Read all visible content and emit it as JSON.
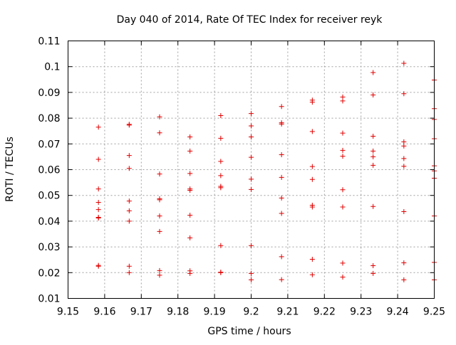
{
  "chart_data": {
    "type": "scatter",
    "title": "Day 040 of 2014, Rate Of TEC Index for receiver reyk",
    "xlabel": "GPS time / hours",
    "ylabel": "ROTI / TECUs",
    "xlim": [
      9.15,
      9.25
    ],
    "ylim": [
      0.01,
      0.11
    ],
    "grid": true,
    "marker": "plus",
    "marker_color": "#e00000",
    "x_ticks": [
      9.15,
      9.16,
      9.17,
      9.18,
      9.19,
      9.2,
      9.21,
      9.22,
      9.23,
      9.24,
      9.25
    ],
    "x_tick_labels": [
      "9.15",
      "9.16",
      "9.17",
      "9.18",
      "9.19",
      "9.2",
      "9.21",
      "9.22",
      "9.23",
      "9.24",
      "9.25"
    ],
    "y_ticks": [
      0.01,
      0.02,
      0.03,
      0.04,
      0.05,
      0.06,
      0.07,
      0.08,
      0.09,
      0.1,
      0.11
    ],
    "y_tick_labels": [
      "0.01",
      "0.02",
      "0.03",
      "0.04",
      "0.05",
      "0.06",
      "0.07",
      "0.08",
      "0.09",
      "0.1",
      "0.11"
    ],
    "series": [
      {
        "name": "ROTI",
        "points": [
          [
            9.1583,
            0.0765
          ],
          [
            9.1583,
            0.064
          ],
          [
            9.1583,
            0.0525
          ],
          [
            9.1583,
            0.0473
          ],
          [
            9.1583,
            0.0445
          ],
          [
            9.1583,
            0.0415
          ],
          [
            9.1583,
            0.0412
          ],
          [
            9.1583,
            0.0228
          ],
          [
            9.1583,
            0.0225
          ],
          [
            9.1667,
            0.0776
          ],
          [
            9.1667,
            0.0773
          ],
          [
            9.1667,
            0.0655
          ],
          [
            9.1667,
            0.0605
          ],
          [
            9.1667,
            0.0478
          ],
          [
            9.1667,
            0.044
          ],
          [
            9.1667,
            0.04
          ],
          [
            9.1667,
            0.0225
          ],
          [
            9.1667,
            0.02
          ],
          [
            9.175,
            0.0805
          ],
          [
            9.175,
            0.0743
          ],
          [
            9.175,
            0.0583
          ],
          [
            9.175,
            0.0487
          ],
          [
            9.175,
            0.0483
          ],
          [
            9.175,
            0.042
          ],
          [
            9.175,
            0.036
          ],
          [
            9.175,
            0.0208
          ],
          [
            9.175,
            0.019
          ],
          [
            9.1833,
            0.0727
          ],
          [
            9.1833,
            0.0672
          ],
          [
            9.1833,
            0.0585
          ],
          [
            9.1833,
            0.0525
          ],
          [
            9.1833,
            0.052
          ],
          [
            9.1833,
            0.0423
          ],
          [
            9.1833,
            0.0335
          ],
          [
            9.1833,
            0.0207
          ],
          [
            9.1833,
            0.0197
          ],
          [
            9.1917,
            0.081
          ],
          [
            9.1917,
            0.0722
          ],
          [
            9.1917,
            0.0632
          ],
          [
            9.1917,
            0.0577
          ],
          [
            9.1917,
            0.0535
          ],
          [
            9.1917,
            0.053
          ],
          [
            9.1917,
            0.0305
          ],
          [
            9.1917,
            0.0202
          ],
          [
            9.1917,
            0.02
          ],
          [
            9.2,
            0.0818
          ],
          [
            9.2,
            0.077
          ],
          [
            9.2,
            0.0727
          ],
          [
            9.2,
            0.0648
          ],
          [
            9.2,
            0.0563
          ],
          [
            9.2,
            0.0523
          ],
          [
            9.2,
            0.0305
          ],
          [
            9.2,
            0.0197
          ],
          [
            9.2,
            0.0172
          ],
          [
            9.2083,
            0.0845
          ],
          [
            9.2083,
            0.0782
          ],
          [
            9.2083,
            0.0777
          ],
          [
            9.2083,
            0.0658
          ],
          [
            9.2083,
            0.057
          ],
          [
            9.2083,
            0.049
          ],
          [
            9.2083,
            0.043
          ],
          [
            9.2083,
            0.0262
          ],
          [
            9.2083,
            0.0173
          ],
          [
            9.2167,
            0.087
          ],
          [
            9.2167,
            0.0862
          ],
          [
            9.2167,
            0.0748
          ],
          [
            9.2167,
            0.0612
          ],
          [
            9.2167,
            0.0562
          ],
          [
            9.2167,
            0.0462
          ],
          [
            9.2167,
            0.0455
          ],
          [
            9.2167,
            0.0252
          ],
          [
            9.2167,
            0.0192
          ],
          [
            9.225,
            0.0882
          ],
          [
            9.225,
            0.0867
          ],
          [
            9.225,
            0.0742
          ],
          [
            9.225,
            0.0675
          ],
          [
            9.225,
            0.0652
          ],
          [
            9.225,
            0.0522
          ],
          [
            9.225,
            0.0455
          ],
          [
            9.225,
            0.0237
          ],
          [
            9.225,
            0.0183
          ],
          [
            9.2333,
            0.0977
          ],
          [
            9.2333,
            0.089
          ],
          [
            9.2333,
            0.073
          ],
          [
            9.2333,
            0.0672
          ],
          [
            9.2333,
            0.065
          ],
          [
            9.2333,
            0.0617
          ],
          [
            9.2333,
            0.0457
          ],
          [
            9.2333,
            0.0227
          ],
          [
            9.2333,
            0.0197
          ],
          [
            9.2417,
            0.1013
          ],
          [
            9.2417,
            0.0895
          ],
          [
            9.2417,
            0.0708
          ],
          [
            9.2417,
            0.0692
          ],
          [
            9.2417,
            0.0643
          ],
          [
            9.2417,
            0.0613
          ],
          [
            9.2417,
            0.0437
          ],
          [
            9.2417,
            0.0238
          ],
          [
            9.2417,
            0.0172
          ],
          [
            9.25,
            0.0948
          ],
          [
            9.25,
            0.0837
          ],
          [
            9.25,
            0.0795
          ],
          [
            9.25,
            0.072
          ],
          [
            9.25,
            0.0615
          ],
          [
            9.25,
            0.0595
          ],
          [
            9.25,
            0.0567
          ],
          [
            9.25,
            0.042
          ],
          [
            9.25,
            0.024
          ],
          [
            9.25,
            0.0172
          ]
        ]
      }
    ]
  }
}
